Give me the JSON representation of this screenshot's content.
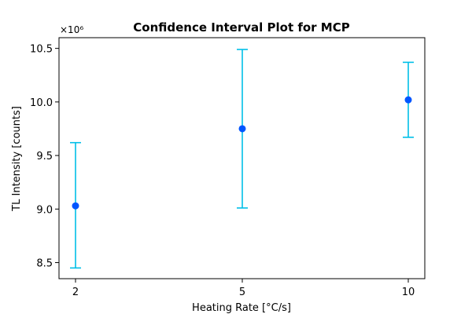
{
  "chart_data": {
    "type": "scatter",
    "title": "Confidence Interval Plot for MCP",
    "xlabel": "Heating Rate [°C/s]",
    "ylabel": "TL Intensity [counts]",
    "y_scale_label": "×10⁶",
    "categories": [
      "2",
      "5",
      "10"
    ],
    "ylim": [
      8.35,
      10.6
    ],
    "yticks": [
      "8.5",
      "9.0",
      "9.5",
      "10.0",
      "10.5"
    ],
    "ytick_values": [
      8.5,
      9.0,
      9.5,
      10.0,
      10.5
    ],
    "points": [
      {
        "x": "2",
        "y": 9.03,
        "lower": 8.45,
        "upper": 9.62
      },
      {
        "x": "5",
        "y": 9.75,
        "lower": 9.01,
        "upper": 10.49
      },
      {
        "x": "10",
        "y": 10.02,
        "lower": 9.67,
        "upper": 10.37
      }
    ],
    "grid": false,
    "colors": {
      "point": "#0055ff",
      "errorbar": "#00bfe8"
    }
  }
}
